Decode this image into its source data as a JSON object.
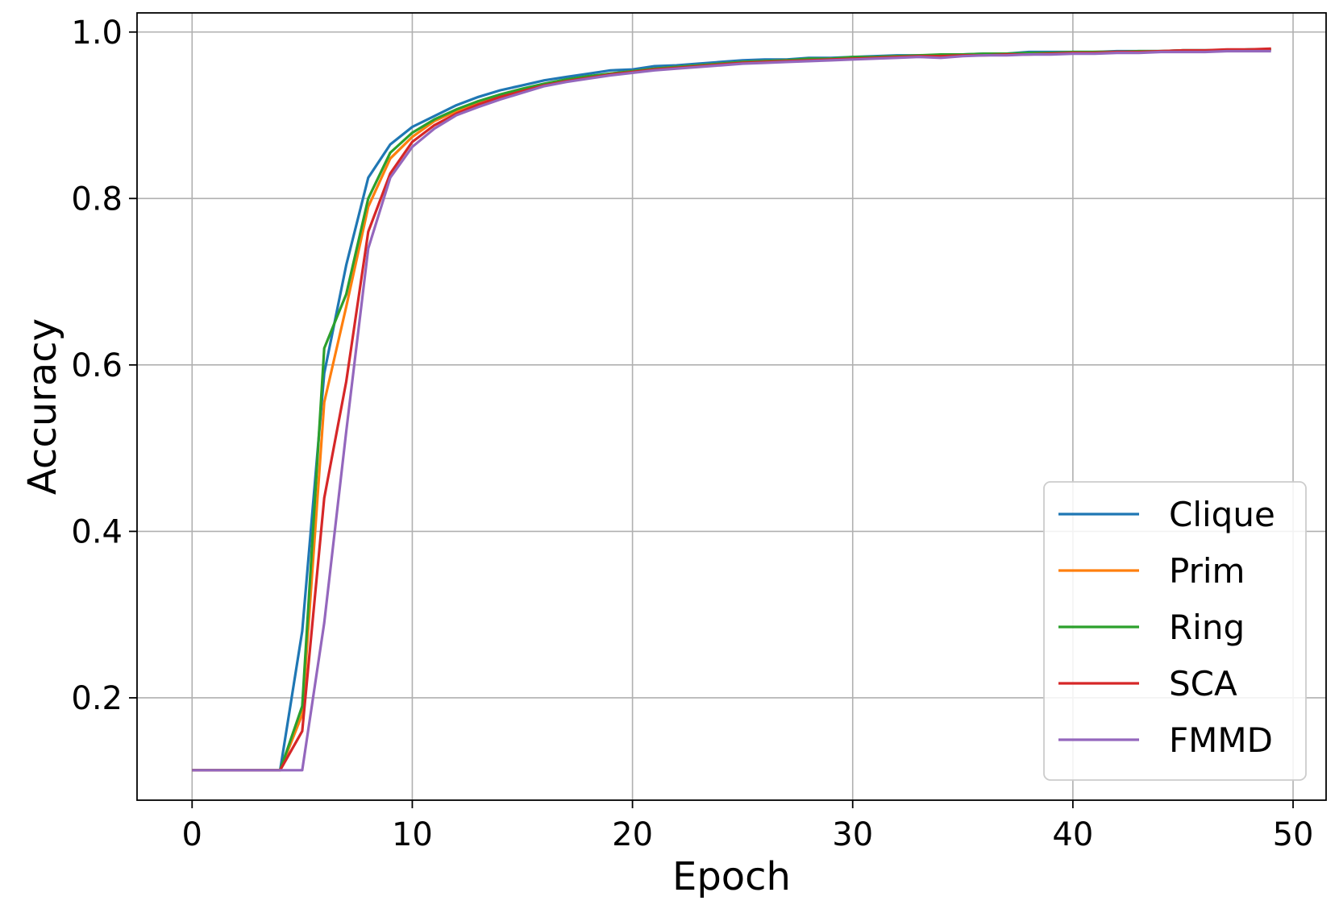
{
  "chart_data": {
    "type": "line",
    "title": "",
    "xlabel": "Epoch",
    "ylabel": "Accuracy",
    "xlim": [
      -2.5,
      51.5
    ],
    "ylim": [
      0.077,
      1.023
    ],
    "xticks": [
      0,
      10,
      20,
      30,
      40,
      50
    ],
    "xtick_labels": [
      "0",
      "10",
      "20",
      "30",
      "40",
      "50"
    ],
    "yticks": [
      0.2,
      0.4,
      0.6,
      0.8,
      1.0
    ],
    "ytick_labels": [
      "0.2",
      "0.4",
      "0.6",
      "0.8",
      "1.0"
    ],
    "grid": true,
    "legend_position": "lower-right",
    "x": [
      0,
      1,
      2,
      3,
      4,
      5,
      6,
      7,
      8,
      9,
      10,
      11,
      12,
      13,
      14,
      15,
      16,
      17,
      18,
      19,
      20,
      21,
      22,
      23,
      24,
      25,
      26,
      27,
      28,
      29,
      30,
      31,
      32,
      33,
      34,
      35,
      36,
      37,
      38,
      39,
      40,
      41,
      42,
      43,
      44,
      45,
      46,
      47,
      48,
      49
    ],
    "series": [
      {
        "name": "Clique",
        "color": "#1f77b4",
        "values": [
          0.113,
          0.113,
          0.113,
          0.113,
          0.113,
          0.28,
          0.59,
          0.72,
          0.825,
          0.865,
          0.886,
          0.899,
          0.912,
          0.922,
          0.93,
          0.936,
          0.942,
          0.946,
          0.95,
          0.954,
          0.955,
          0.959,
          0.96,
          0.962,
          0.964,
          0.966,
          0.967,
          0.967,
          0.969,
          0.969,
          0.97,
          0.971,
          0.972,
          0.972,
          0.972,
          0.973,
          0.974,
          0.974,
          0.976,
          0.976,
          0.976,
          0.976,
          0.977,
          0.977,
          0.977,
          0.978,
          0.978,
          0.978,
          0.979,
          0.979
        ]
      },
      {
        "name": "Prim",
        "color": "#ff7f0e",
        "values": [
          0.113,
          0.113,
          0.113,
          0.113,
          0.113,
          0.18,
          0.555,
          0.67,
          0.79,
          0.848,
          0.874,
          0.893,
          0.905,
          0.915,
          0.924,
          0.931,
          0.937,
          0.942,
          0.946,
          0.95,
          0.953,
          0.956,
          0.958,
          0.96,
          0.962,
          0.964,
          0.965,
          0.966,
          0.967,
          0.968,
          0.969,
          0.97,
          0.971,
          0.971,
          0.972,
          0.972,
          0.973,
          0.973,
          0.974,
          0.975,
          0.975,
          0.976,
          0.976,
          0.976,
          0.977,
          0.977,
          0.977,
          0.978,
          0.978,
          0.979
        ]
      },
      {
        "name": "Ring",
        "color": "#2ca02c",
        "values": [
          0.113,
          0.113,
          0.113,
          0.113,
          0.113,
          0.19,
          0.62,
          0.685,
          0.8,
          0.855,
          0.879,
          0.895,
          0.907,
          0.917,
          0.925,
          0.932,
          0.938,
          0.943,
          0.947,
          0.95,
          0.953,
          0.956,
          0.958,
          0.96,
          0.962,
          0.964,
          0.965,
          0.966,
          0.968,
          0.968,
          0.97,
          0.97,
          0.971,
          0.972,
          0.973,
          0.973,
          0.974,
          0.974,
          0.975,
          0.975,
          0.976,
          0.976,
          0.976,
          0.977,
          0.977,
          0.978,
          0.978,
          0.978,
          0.979,
          0.979
        ]
      },
      {
        "name": "SCA",
        "color": "#d62728",
        "values": [
          0.113,
          0.113,
          0.113,
          0.113,
          0.113,
          0.16,
          0.44,
          0.58,
          0.76,
          0.83,
          0.868,
          0.888,
          0.902,
          0.913,
          0.922,
          0.929,
          0.936,
          0.941,
          0.945,
          0.949,
          0.952,
          0.955,
          0.957,
          0.959,
          0.961,
          0.963,
          0.964,
          0.965,
          0.966,
          0.967,
          0.968,
          0.969,
          0.97,
          0.971,
          0.971,
          0.972,
          0.972,
          0.973,
          0.973,
          0.974,
          0.975,
          0.975,
          0.976,
          0.976,
          0.977,
          0.978,
          0.978,
          0.979,
          0.979,
          0.98
        ]
      },
      {
        "name": "FMMD",
        "color": "#9467bd",
        "values": [
          0.113,
          0.113,
          0.113,
          0.113,
          0.113,
          0.113,
          0.29,
          0.52,
          0.74,
          0.825,
          0.862,
          0.884,
          0.9,
          0.91,
          0.919,
          0.927,
          0.935,
          0.94,
          0.944,
          0.948,
          0.951,
          0.954,
          0.956,
          0.958,
          0.96,
          0.962,
          0.963,
          0.964,
          0.965,
          0.966,
          0.967,
          0.968,
          0.969,
          0.97,
          0.969,
          0.971,
          0.972,
          0.972,
          0.973,
          0.973,
          0.974,
          0.974,
          0.975,
          0.975,
          0.976,
          0.976,
          0.976,
          0.977,
          0.977,
          0.977
        ]
      }
    ]
  }
}
